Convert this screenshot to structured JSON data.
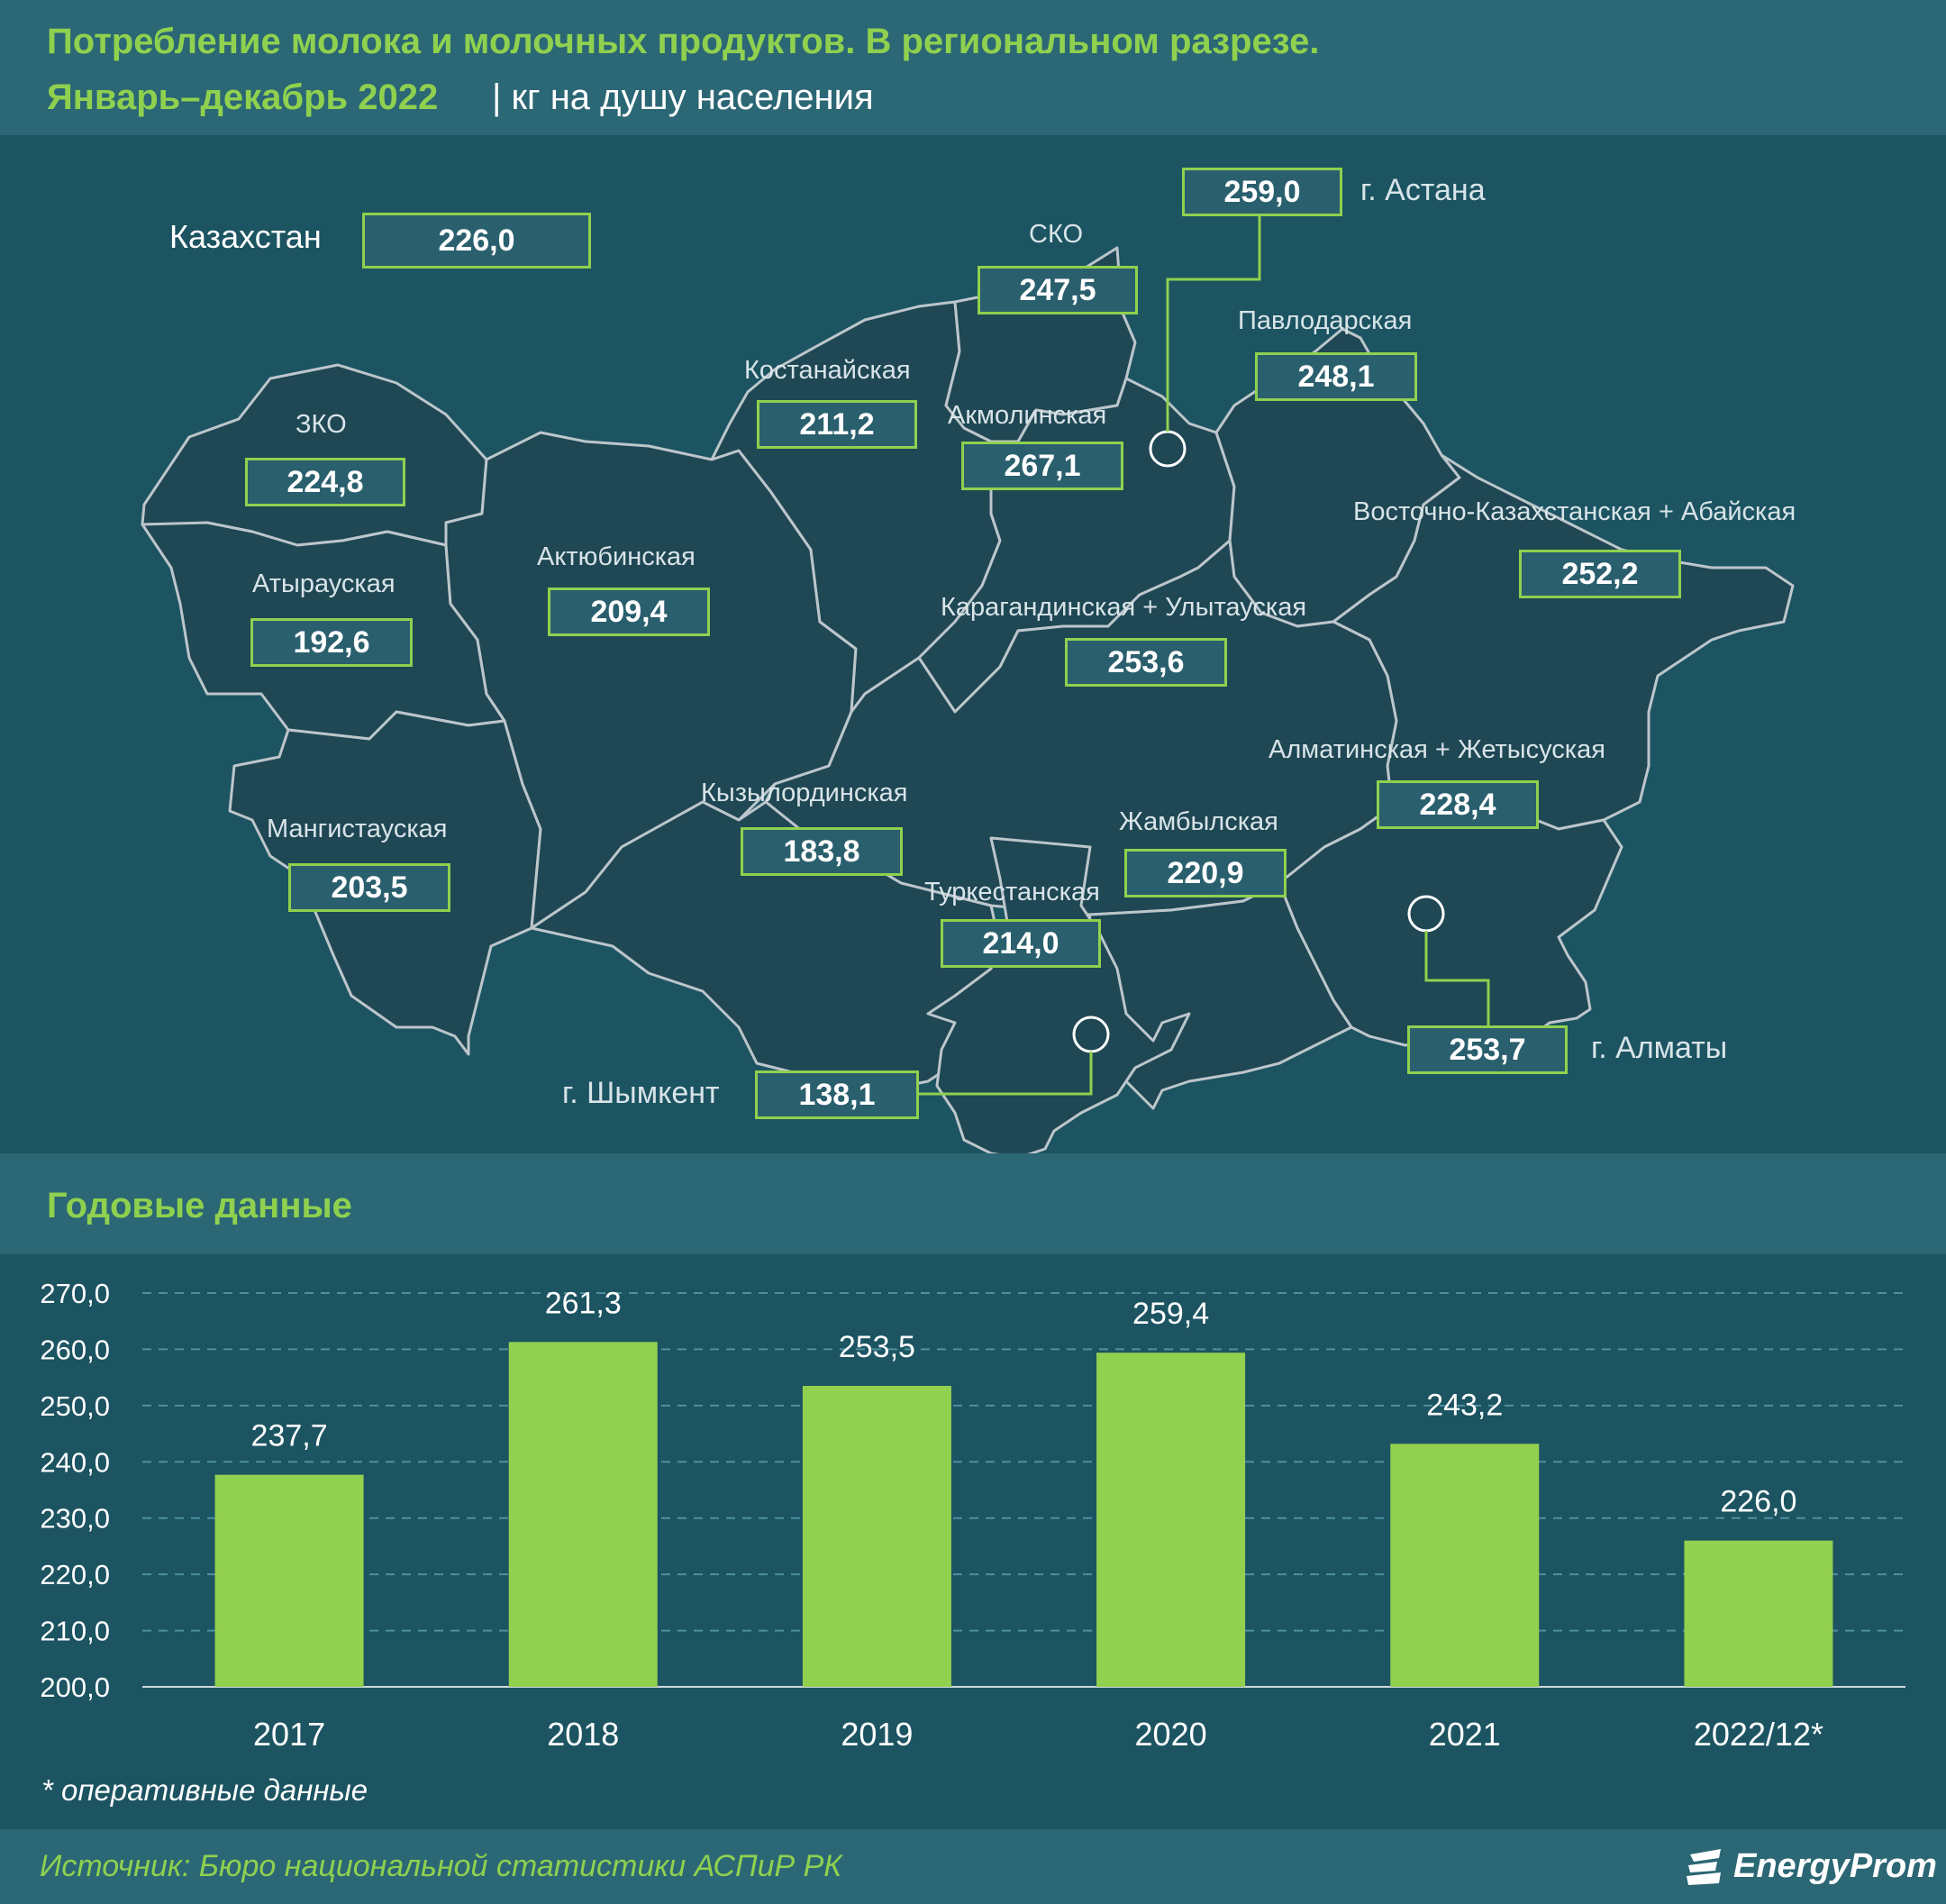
{
  "header": {
    "title": "Потребление молока и молочных продуктов. В региональном разрезе.",
    "period": "Январь–декабрь 2022",
    "unit": "| кг на душу населения"
  },
  "map": {
    "kazakhstan": {
      "label": "Казахстан",
      "value": "226,0"
    },
    "regions": {
      "astana": {
        "label": "г. Астана",
        "value": "259,0"
      },
      "sko": {
        "label": "СКО",
        "value": "247,5"
      },
      "pavlodar": {
        "label": "Павлодарская",
        "value": "248,1"
      },
      "kostanay": {
        "label": "Костанайская",
        "value": "211,2"
      },
      "akmola": {
        "label": "Акмолинская",
        "value": "267,1"
      },
      "zko": {
        "label": "ЗКО",
        "value": "224,8"
      },
      "aktobe": {
        "label": "Актюбинская",
        "value": "209,4"
      },
      "atyrau": {
        "label": "Атырауская",
        "value": "192,6"
      },
      "vko": {
        "label": "Восточно-Казахстанская + Абайская",
        "value": "252,2"
      },
      "karaganda": {
        "label": "Карагандинская + Улытауская",
        "value": "253,6"
      },
      "almaty_obl": {
        "label": "Алматинская + Жетысуская",
        "value": "228,4"
      },
      "kyzylorda": {
        "label": "Кызылординская",
        "value": "183,8"
      },
      "zhambyl": {
        "label": "Жамбылская",
        "value": "220,9"
      },
      "mangystau": {
        "label": "Мангистауская",
        "value": "203,5"
      },
      "turkestan": {
        "label": "Туркестанская",
        "value": "214,0"
      },
      "almaty_city": {
        "label": "г. Алматы",
        "value": "253,7"
      },
      "shymkent": {
        "label": "г. Шымкент",
        "value": "138,1"
      }
    }
  },
  "annual": {
    "title": "Годовые данные"
  },
  "chart_data": {
    "type": "bar",
    "categories": [
      "2017",
      "2018",
      "2019",
      "2020",
      "2021",
      "2022/12*"
    ],
    "values": [
      237.7,
      261.3,
      253.5,
      259.4,
      243.2,
      226.0
    ],
    "value_labels": [
      "237,7",
      "261,3",
      "253,5",
      "259,4",
      "243,2",
      "226,0"
    ],
    "ylim": [
      200,
      270
    ],
    "yticks": [
      "200,0",
      "210,0",
      "220,0",
      "230,0",
      "240,0",
      "250,0",
      "260,0",
      "270,0"
    ],
    "grid": "dashed horizontal",
    "bar_color": "#92d050"
  },
  "footnote": "* оперативные данные",
  "source": "Источник: Бюро национальной статистики АСПиР РК",
  "logo": "EnergyProm",
  "colors": {
    "accent": "#8fd14f",
    "background": "#1c5462",
    "header": "#2b6775",
    "region_fill": "#1f4754",
    "region_border": "#bcc6cb"
  }
}
